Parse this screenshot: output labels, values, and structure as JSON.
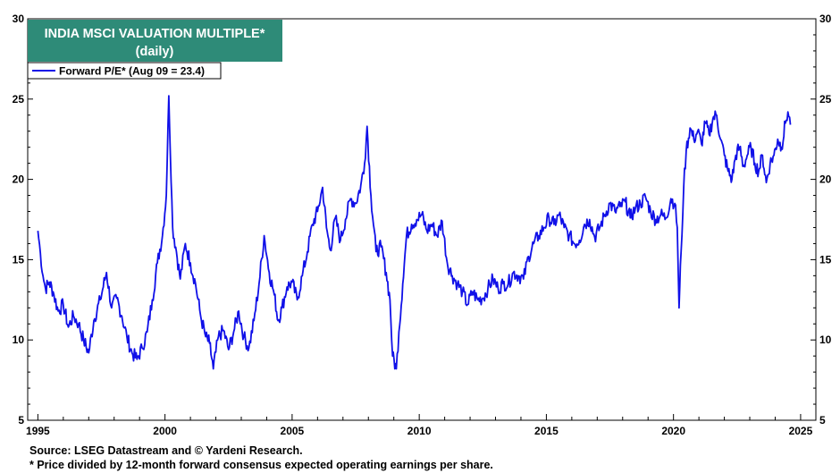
{
  "chart_data": {
    "type": "line",
    "title": "INDIA MSCI VALUATION MULTIPLE*",
    "subtitle": "(daily)",
    "title_box_color": "#2e8b78",
    "xlim": [
      1994.6,
      2025.6
    ],
    "ylim": [
      5,
      30
    ],
    "y_ticks": [
      5,
      10,
      15,
      20,
      25,
      30
    ],
    "x_ticks": [
      1995,
      2000,
      2005,
      2010,
      2015,
      2020,
      2025
    ],
    "grid": false,
    "legend_position": "top-left",
    "series": [
      {
        "name": "Forward P/E* (Aug 09 = 23.4)",
        "color": "#1010e8",
        "x": [
          1995.0,
          1995.1,
          1995.2,
          1995.3,
          1995.45,
          1995.6,
          1995.8,
          1996.0,
          1996.2,
          1996.4,
          1996.6,
          1996.8,
          1997.0,
          1997.2,
          1997.45,
          1997.7,
          1997.9,
          1998.1,
          1998.3,
          1998.5,
          1998.7,
          1998.9,
          1999.1,
          1999.3,
          1999.5,
          1999.7,
          1999.9,
          2000.05,
          2000.15,
          2000.3,
          2000.45,
          2000.6,
          2000.8,
          2001.0,
          2001.2,
          2001.4,
          2001.6,
          2001.75,
          2001.9,
          2002.1,
          2002.3,
          2002.5,
          2002.7,
          2002.9,
          2003.1,
          2003.3,
          2003.5,
          2003.7,
          2003.9,
          2004.1,
          2004.3,
          2004.45,
          2004.6,
          2004.8,
          2005.0,
          2005.2,
          2005.4,
          2005.6,
          2005.8,
          2006.0,
          2006.2,
          2006.35,
          2006.5,
          2006.7,
          2006.9,
          2007.1,
          2007.3,
          2007.5,
          2007.7,
          2007.85,
          2007.95,
          2008.1,
          2008.3,
          2008.5,
          2008.7,
          2008.85,
          2008.95,
          2009.1,
          2009.2,
          2009.35,
          2009.5,
          2009.7,
          2009.9,
          2010.1,
          2010.3,
          2010.5,
          2010.7,
          2010.9,
          2011.1,
          2011.3,
          2011.5,
          2011.7,
          2011.9,
          2012.1,
          2012.3,
          2012.5,
          2012.7,
          2012.9,
          2013.1,
          2013.3,
          2013.5,
          2013.7,
          2013.9,
          2014.1,
          2014.3,
          2014.5,
          2014.7,
          2014.9,
          2015.1,
          2015.3,
          2015.5,
          2015.7,
          2015.9,
          2016.1,
          2016.3,
          2016.5,
          2016.7,
          2016.9,
          2017.1,
          2017.3,
          2017.5,
          2017.7,
          2017.9,
          2018.1,
          2018.3,
          2018.5,
          2018.7,
          2018.9,
          2019.1,
          2019.3,
          2019.5,
          2019.7,
          2019.9,
          2020.05,
          2020.15,
          2020.22,
          2020.3,
          2020.4,
          2020.5,
          2020.65,
          2020.8,
          2020.95,
          2021.1,
          2021.25,
          2021.4,
          2021.55,
          2021.7,
          2021.85,
          2022.0,
          2022.15,
          2022.3,
          2022.45,
          2022.6,
          2022.75,
          2022.9,
          2023.05,
          2023.2,
          2023.35,
          2023.5,
          2023.65,
          2023.8,
          2023.95,
          2024.1,
          2024.25,
          2024.4,
          2024.5,
          2024.6
        ],
        "values": [
          16.8,
          15.4,
          14.0,
          13.2,
          13.6,
          13.0,
          11.8,
          12.2,
          10.8,
          11.5,
          11.0,
          10.0,
          9.2,
          11.2,
          12.5,
          14.2,
          12.0,
          12.6,
          11.5,
          10.2,
          9.2,
          8.8,
          9.5,
          10.5,
          12.5,
          14.8,
          16.5,
          19.0,
          25.2,
          17.0,
          15.5,
          13.8,
          16.0,
          14.8,
          13.5,
          11.5,
          10.2,
          9.8,
          8.2,
          10.2,
          10.6,
          9.4,
          10.5,
          11.8,
          10.2,
          9.5,
          11.2,
          13.5,
          16.5,
          14.2,
          12.8,
          11.2,
          12.0,
          13.3,
          13.6,
          12.5,
          14.0,
          15.5,
          17.2,
          18.0,
          19.5,
          17.0,
          15.6,
          17.6,
          16.2,
          17.5,
          18.8,
          18.5,
          19.6,
          21.0,
          23.3,
          19.0,
          15.5,
          15.8,
          14.2,
          12.5,
          9.0,
          8.2,
          10.5,
          13.5,
          16.5,
          17.2,
          17.5,
          17.8,
          16.8,
          17.2,
          16.5,
          17.4,
          14.8,
          14.0,
          13.5,
          13.0,
          12.2,
          13.0,
          12.5,
          12.6,
          13.2,
          13.8,
          13.2,
          13.5,
          13.5,
          14.2,
          14.0,
          13.8,
          15.2,
          16.0,
          16.5,
          17.0,
          17.6,
          17.2,
          17.8,
          17.0,
          16.5,
          16.0,
          16.2,
          17.2,
          17.5,
          16.4,
          17.0,
          17.8,
          18.5,
          18.0,
          18.3,
          18.6,
          17.6,
          18.2,
          18.5,
          18.9,
          18.0,
          17.5,
          17.8,
          17.6,
          18.8,
          18.5,
          17.0,
          12.0,
          15.5,
          19.5,
          21.8,
          23.2,
          22.5,
          23.0,
          22.2,
          23.5,
          22.8,
          23.8,
          24.0,
          22.5,
          21.5,
          20.5,
          20.0,
          21.5,
          22.0,
          20.8,
          21.5,
          22.0,
          21.0,
          20.5,
          21.5,
          19.8,
          21.0,
          21.5,
          22.5,
          22.0,
          23.5,
          24.2,
          23.4
        ]
      }
    ]
  },
  "footer": {
    "source": "Source: LSEG Datastream and © Yardeni Research.",
    "note": "* Price divided by 12-month forward consensus expected operating earnings per share."
  }
}
